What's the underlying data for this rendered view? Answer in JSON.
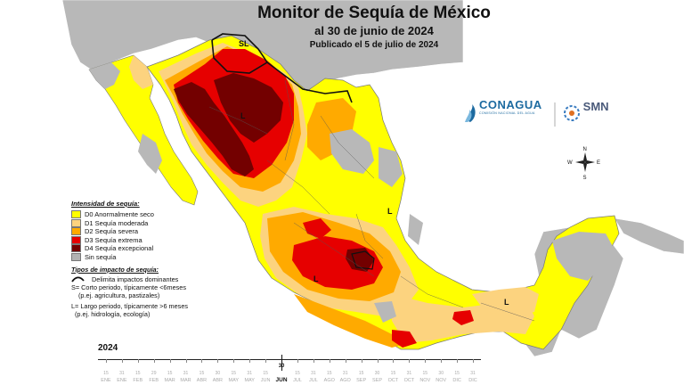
{
  "header": {
    "title": "Monitor de Sequía de México",
    "subtitle": "al 30 de junio de 2024",
    "published": "Publicado el 5 de julio de 2024"
  },
  "legend": {
    "heading": "Intensidad de sequía:",
    "items": [
      {
        "label": "D0 Anormalmente seco",
        "color": "#ffff00"
      },
      {
        "label": "D1 Sequía moderada",
        "color": "#fcd37f"
      },
      {
        "label": "D2 Sequía severa",
        "color": "#ffaa00"
      },
      {
        "label": "D3 Sequía extrema",
        "color": "#e60000"
      },
      {
        "label": "D4 Sequía excepcional",
        "color": "#730000"
      },
      {
        "label": "Sin sequía",
        "color": "#b2b2b2"
      }
    ]
  },
  "impact": {
    "heading": "Tipos de impacto de sequía:",
    "line_label": "Delimita impactos dominantes",
    "s_line1": "S= Corto periodo, típicamente <6meses",
    "s_line2": "(p.ej. agricultura, pastizales)",
    "l_line1": "L= Largo periodo, típicamente >6 meses",
    "l_line2": "(p.ej. hidrología, ecología)"
  },
  "map_labels": {
    "sl": "SL",
    "l_north": "L",
    "l_east": "L",
    "l_south": "L",
    "l_southeast": "L"
  },
  "logos": {
    "conagua": "CONAGUA",
    "conagua_sub": "COMISIÓN NACIONAL DEL AGUA",
    "smn": "SMN"
  },
  "compass": {
    "n": "N",
    "s": "S",
    "e": "E",
    "w": "W"
  },
  "timeline": {
    "year": "2024",
    "current_day": "30",
    "current_month": "JUN",
    "months": [
      "ENE",
      "ENE",
      "FEB",
      "FEB",
      "MAR",
      "MAR",
      "ABR",
      "ABR",
      "MAY",
      "MAY",
      "JUN",
      "JUN",
      "JUL",
      "JUL",
      "AGO",
      "AGO",
      "SEP",
      "SEP",
      "OCT",
      "OCT",
      "NOV",
      "NOV",
      "DIC",
      "DIC"
    ],
    "days": [
      "15",
      "31",
      "15",
      "29",
      "15",
      "31",
      "15",
      "30",
      "15",
      "31",
      "15",
      "30",
      "15",
      "31",
      "15",
      "31",
      "15",
      "30",
      "15",
      "31",
      "15",
      "30",
      "15",
      "31"
    ],
    "current_index": 11
  }
}
